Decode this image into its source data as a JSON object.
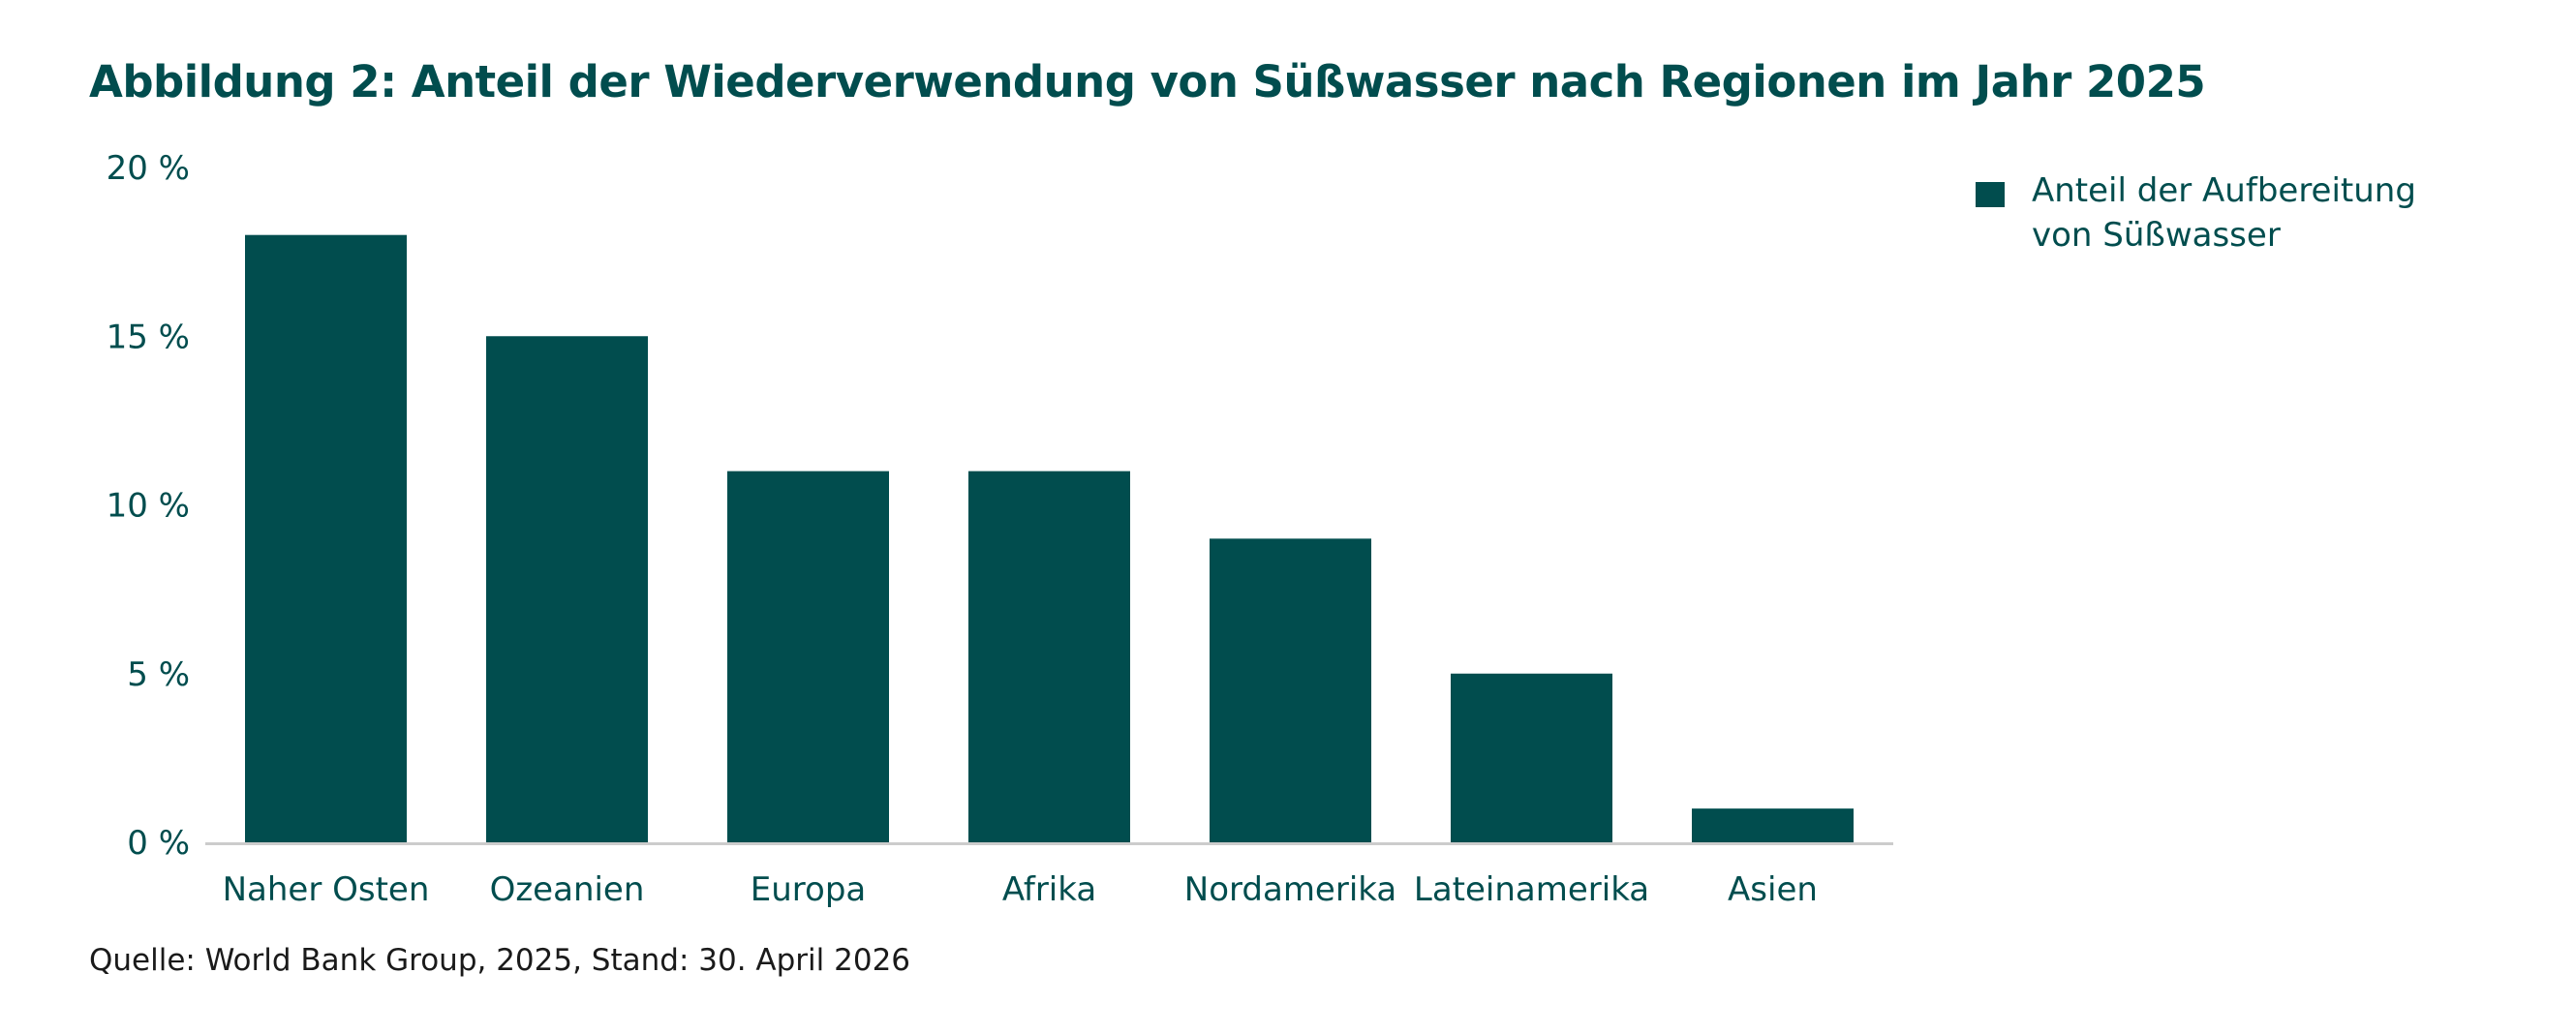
{
  "title": "Abbildung 2: Anteil der Wiederverwendung von Süßwasser nach Regionen im Jahr 2025",
  "source": "Quelle: World Bank Group, 2025, Stand: 30. April 2026",
  "colors": {
    "bar": "#014d4e",
    "text": "#014d4e",
    "axis": "#cccccc"
  },
  "chart_data": {
    "type": "bar",
    "title": "Abbildung 2: Anteil der Wiederverwendung von Süßwasser nach Regionen im Jahr 2025",
    "categories": [
      "Naher Osten",
      "Ozeanien",
      "Europa",
      "Afrika",
      "Nordamerika",
      "Lateinamerika",
      "Asien"
    ],
    "series": [
      {
        "name": "Anteil der Aufbereitung\nvon Süßwasser",
        "values": [
          18,
          15,
          11,
          11,
          9,
          5,
          1
        ]
      }
    ],
    "ylim": [
      0,
      20
    ],
    "yticks": [
      0,
      5,
      10,
      15,
      20
    ],
    "ytick_labels": [
      "0 %",
      "5 %",
      "10 %",
      "15 %",
      "20 %"
    ],
    "grid": false,
    "legend_position": "top-right"
  }
}
